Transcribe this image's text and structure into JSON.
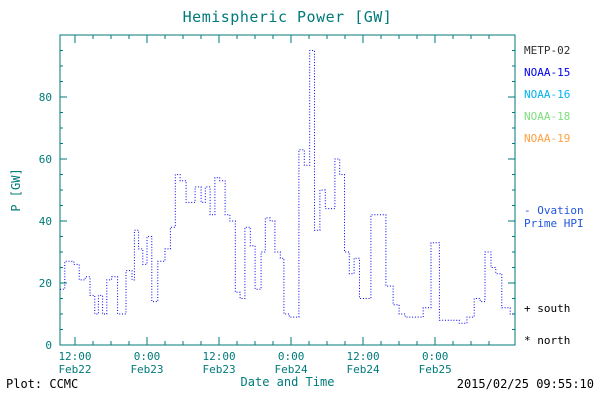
{
  "colors": {
    "axis": "#007a7a",
    "line": "#0000ee",
    "text": "#000000",
    "background": "#ffffff"
  },
  "chart_data": {
    "type": "line",
    "line_style": "dotted-step",
    "title": "Hemispheric Power [GW]",
    "xlabel": "Date and Time",
    "ylabel": "P [GW]",
    "ylim": [
      0,
      100
    ],
    "yticks": [
      0,
      20,
      40,
      60,
      80
    ],
    "y_minor_step": 5,
    "x_span_hours": 75.8,
    "x_minor_step_hours": 3,
    "grid": false,
    "legend_position": "right",
    "xticks": [
      {
        "t": 2.5,
        "time": "12:00",
        "date": "Feb22"
      },
      {
        "t": 14.5,
        "time": "0:00",
        "date": "Feb23"
      },
      {
        "t": 26.5,
        "time": "12:00",
        "date": "Feb23"
      },
      {
        "t": 38.5,
        "time": "0:00",
        "date": "Feb24"
      },
      {
        "t": 50.5,
        "time": "12:00",
        "date": "Feb24"
      },
      {
        "t": 62.5,
        "time": "0:00",
        "date": "Feb25"
      }
    ],
    "series": [
      {
        "name": "Ovation Prime HPI",
        "color": "#0000ee",
        "units": "GW",
        "points_t_hours_value_gw": [
          [
            0,
            18
          ],
          [
            0.8,
            27
          ],
          [
            2.3,
            26
          ],
          [
            3.2,
            21
          ],
          [
            4.2,
            22
          ],
          [
            5,
            16
          ],
          [
            5.8,
            10
          ],
          [
            6.4,
            16
          ],
          [
            7.1,
            10
          ],
          [
            7.8,
            21
          ],
          [
            8.6,
            22
          ],
          [
            9.6,
            10
          ],
          [
            11,
            24
          ],
          [
            12,
            21
          ],
          [
            12.4,
            37
          ],
          [
            13.1,
            31
          ],
          [
            13.8,
            26
          ],
          [
            14.5,
            35
          ],
          [
            15.3,
            14
          ],
          [
            16.3,
            27
          ],
          [
            17.5,
            31
          ],
          [
            18.4,
            38
          ],
          [
            19.2,
            55
          ],
          [
            20,
            53
          ],
          [
            21,
            46
          ],
          [
            22.5,
            51
          ],
          [
            23.5,
            46
          ],
          [
            24.2,
            51
          ],
          [
            25,
            42
          ],
          [
            25.8,
            54
          ],
          [
            26.6,
            53
          ],
          [
            27.5,
            42
          ],
          [
            28.3,
            40
          ],
          [
            29.2,
            17
          ],
          [
            30,
            15
          ],
          [
            30.8,
            38
          ],
          [
            31.7,
            32
          ],
          [
            32.5,
            18
          ],
          [
            33.5,
            30
          ],
          [
            34.2,
            41
          ],
          [
            35,
            40
          ],
          [
            35.8,
            30
          ],
          [
            36.7,
            28
          ],
          [
            37.3,
            10
          ],
          [
            38.2,
            9
          ],
          [
            39.2,
            9
          ],
          [
            39.8,
            63
          ],
          [
            40.7,
            58
          ],
          [
            41.6,
            95
          ],
          [
            42.4,
            37
          ],
          [
            43.3,
            50
          ],
          [
            44.2,
            44
          ],
          [
            45.8,
            60
          ],
          [
            46.6,
            55
          ],
          [
            47.4,
            30
          ],
          [
            48.2,
            23
          ],
          [
            49,
            28
          ],
          [
            49.9,
            15
          ],
          [
            51.8,
            42
          ],
          [
            54.3,
            19
          ],
          [
            55.5,
            13
          ],
          [
            56.5,
            10
          ],
          [
            57.5,
            9
          ],
          [
            59,
            9
          ],
          [
            60.5,
            12
          ],
          [
            61.8,
            33
          ],
          [
            63.2,
            8
          ],
          [
            65,
            8
          ],
          [
            66.5,
            7
          ],
          [
            67.8,
            9
          ],
          [
            69,
            15
          ],
          [
            70,
            14
          ],
          [
            70.8,
            30
          ],
          [
            71.8,
            25
          ],
          [
            72.6,
            23
          ],
          [
            73.6,
            12
          ],
          [
            75,
            10
          ]
        ]
      }
    ]
  },
  "legend": {
    "satellites": [
      {
        "label": "METP-02",
        "color": "#303030"
      },
      {
        "label": "NOAA-15",
        "color": "#0000ee"
      },
      {
        "label": "NOAA-16",
        "color": "#00b4ee"
      },
      {
        "label": "NOAA-18",
        "color": "#7ddf7d"
      },
      {
        "label": "NOAA-19",
        "color": "#ffa040"
      }
    ],
    "line_entry": {
      "lines": [
        "- Ovation",
        "Prime HPI"
      ],
      "color": "#2255dd"
    },
    "markers": [
      {
        "symbol": "+",
        "label": "south"
      },
      {
        "symbol": "*",
        "label": "north"
      }
    ]
  },
  "footer": {
    "left": "Plot: CCMC",
    "right": "2015/02/25 09:55:10"
  }
}
